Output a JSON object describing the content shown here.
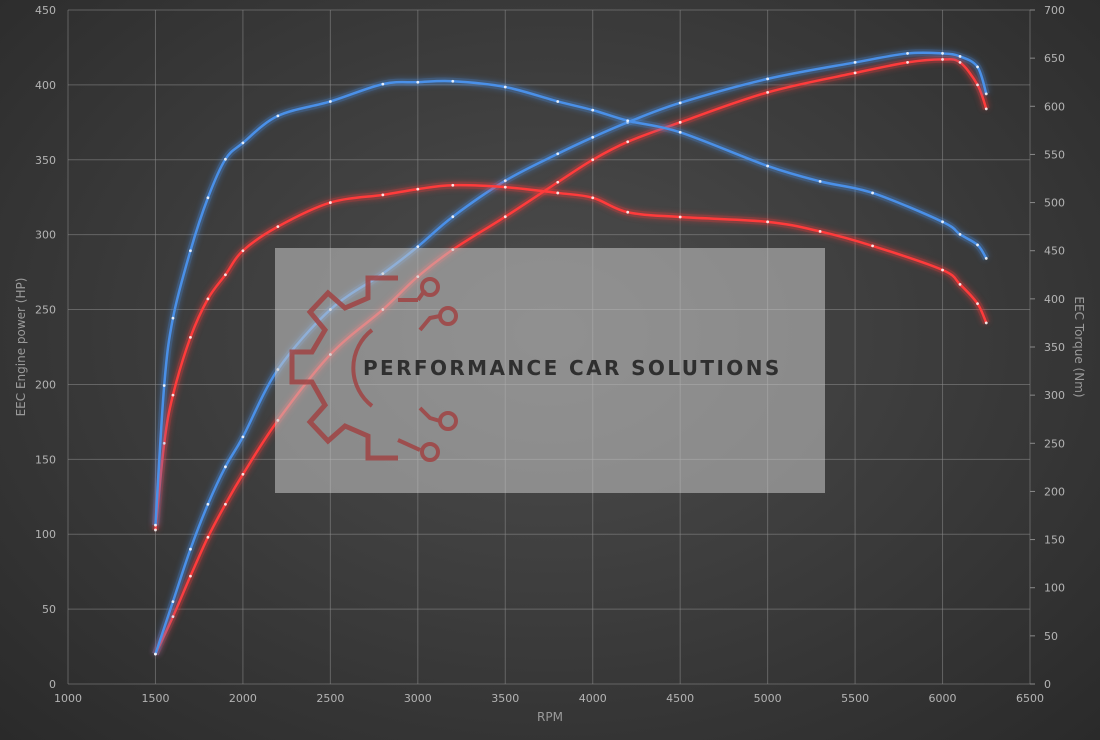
{
  "chart_data": {
    "type": "line",
    "xlabel": "RPM",
    "ylabel_left": "EEC Engine power (HP)",
    "ylabel_right": "EEC Torque (Nm)",
    "xlim": [
      1000,
      6500
    ],
    "ylim_left": [
      0,
      450
    ],
    "ylim_right": [
      0,
      700
    ],
    "x_ticks": [
      1000,
      1500,
      2000,
      2500,
      3000,
      3500,
      4000,
      4500,
      5000,
      5500,
      6000,
      6500
    ],
    "y_ticks_left": [
      0,
      50,
      100,
      150,
      200,
      250,
      300,
      350,
      400,
      450
    ],
    "y_ticks_right": [
      0,
      50,
      100,
      150,
      200,
      250,
      300,
      350,
      400,
      450,
      500,
      550,
      600,
      650,
      700
    ],
    "grid": true,
    "series": [
      {
        "axis": "left",
        "color": "#ff3b3b",
        "x": [
          1500,
          1600,
          1700,
          1800,
          1900,
          2000,
          2200,
          2500,
          2800,
          3000,
          3200,
          3500,
          3800,
          4000,
          4200,
          4500,
          5000,
          5500,
          5800,
          6000,
          6100,
          6200,
          6250
        ],
        "y": [
          20,
          45,
          72,
          98,
          120,
          140,
          176,
          220,
          250,
          272,
          290,
          312,
          335,
          350,
          362,
          375,
          395,
          408,
          415,
          417,
          415,
          400,
          384
        ]
      },
      {
        "axis": "left",
        "color": "#4a90e8",
        "x": [
          1500,
          1600,
          1700,
          1800,
          1900,
          2000,
          2200,
          2500,
          2800,
          3000,
          3200,
          3500,
          3800,
          4000,
          4200,
          4500,
          5000,
          5500,
          5800,
          6000,
          6100,
          6200,
          6250
        ],
        "y": [
          20,
          55,
          90,
          120,
          145,
          165,
          210,
          250,
          274,
          292,
          312,
          336,
          354,
          365,
          375,
          388,
          404,
          415,
          421,
          421,
          419,
          412,
          394
        ]
      },
      {
        "axis": "right",
        "color": "#ff3b3b",
        "x": [
          1500,
          1550,
          1600,
          1700,
          1800,
          1900,
          2000,
          2200,
          2500,
          2800,
          3000,
          3200,
          3500,
          3800,
          4000,
          4200,
          4500,
          5000,
          5300,
          5600,
          6000,
          6100,
          6200,
          6250
        ],
        "y": [
          160,
          250,
          300,
          360,
          400,
          425,
          450,
          475,
          500,
          508,
          514,
          518,
          516,
          510,
          505,
          490,
          485,
          480,
          470,
          455,
          430,
          415,
          395,
          375
        ]
      },
      {
        "axis": "right",
        "color": "#4a90e8",
        "x": [
          1500,
          1550,
          1600,
          1700,
          1800,
          1900,
          2000,
          2200,
          2500,
          2800,
          3000,
          3200,
          3500,
          3800,
          4000,
          4200,
          4500,
          5000,
          5300,
          5600,
          6000,
          6100,
          6200,
          6250
        ],
        "y": [
          165,
          310,
          380,
          450,
          505,
          545,
          562,
          590,
          605,
          623,
          625,
          626,
          620,
          605,
          596,
          585,
          573,
          538,
          522,
          510,
          480,
          467,
          456,
          442
        ]
      }
    ]
  },
  "watermark": {
    "text": "PERFORMANCE CAR SOLUTIONS",
    "logo": "gear-circuit-logo"
  }
}
